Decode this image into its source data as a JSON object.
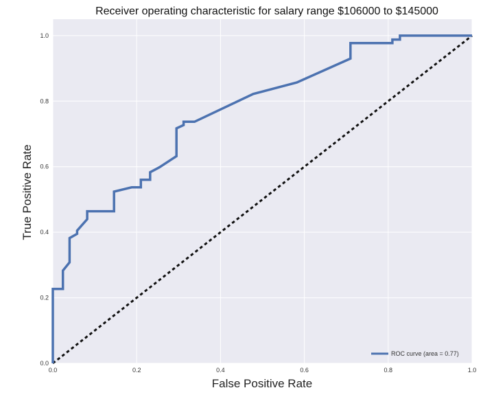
{
  "chart_data": {
    "type": "line",
    "title": "Receiver operating characteristic for salary range $106000 to $145000",
    "xlabel": "False Positive Rate",
    "ylabel": "True Positive Rate",
    "xlim": [
      0.0,
      1.0
    ],
    "ylim": [
      0.0,
      1.05
    ],
    "xticks": [
      "0.0",
      "0.2",
      "0.4",
      "0.6",
      "0.8",
      "1.0"
    ],
    "yticks": [
      "0.0",
      "0.2",
      "0.4",
      "0.6",
      "0.8",
      "1.0"
    ],
    "grid": true,
    "legend_position": "lower-right",
    "series": [
      {
        "name": "ROC curve (area = 0.77)",
        "color": "#4c72b0",
        "style": "solid",
        "points": [
          [
            0.0,
            0.0
          ],
          [
            0.0,
            0.227
          ],
          [
            0.024,
            0.227
          ],
          [
            0.024,
            0.283
          ],
          [
            0.04,
            0.308
          ],
          [
            0.04,
            0.382
          ],
          [
            0.058,
            0.395
          ],
          [
            0.058,
            0.405
          ],
          [
            0.082,
            0.44
          ],
          [
            0.082,
            0.464
          ],
          [
            0.146,
            0.464
          ],
          [
            0.146,
            0.524
          ],
          [
            0.188,
            0.537
          ],
          [
            0.21,
            0.537
          ],
          [
            0.21,
            0.56
          ],
          [
            0.232,
            0.56
          ],
          [
            0.232,
            0.583
          ],
          [
            0.254,
            0.598
          ],
          [
            0.295,
            0.632
          ],
          [
            0.295,
            0.717
          ],
          [
            0.312,
            0.727
          ],
          [
            0.312,
            0.737
          ],
          [
            0.338,
            0.737
          ],
          [
            0.478,
            0.822
          ],
          [
            0.582,
            0.857
          ],
          [
            0.71,
            0.93
          ],
          [
            0.71,
            0.977
          ],
          [
            0.81,
            0.977
          ],
          [
            0.81,
            0.988
          ],
          [
            0.828,
            0.988
          ],
          [
            0.828,
            1.0
          ],
          [
            1.0,
            1.0
          ]
        ]
      },
      {
        "name": "",
        "color": "#111111",
        "style": "dashed",
        "points": [
          [
            0.0,
            0.0
          ],
          [
            1.0,
            1.0
          ]
        ]
      }
    ]
  }
}
